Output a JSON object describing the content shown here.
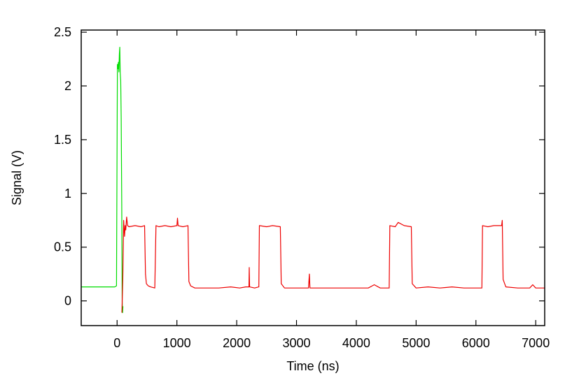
{
  "chart_data": {
    "type": "line",
    "title": "",
    "xlabel": "Time (ns)",
    "ylabel": "Signal (V)",
    "xlim": [
      -600,
      7150
    ],
    "ylim": [
      -0.23,
      2.52
    ],
    "xticks": [
      0,
      1000,
      2000,
      3000,
      4000,
      5000,
      6000,
      7000
    ],
    "xtick_labels": [
      "0",
      "1000",
      "2000",
      "3000",
      "4000",
      "5000",
      "6000",
      "7000"
    ],
    "yticks": [
      0,
      0.5,
      1,
      1.5,
      2,
      2.5
    ],
    "ytick_labels": [
      "0",
      "0.5",
      "1",
      "1.5",
      "2",
      "2.5"
    ],
    "grid": false,
    "legend": "none",
    "series": [
      {
        "color": "#00dd00",
        "points": [
          [
            -600,
            0.13
          ],
          [
            -40,
            0.13
          ],
          [
            -10,
            0.14
          ],
          [
            5,
            2.2
          ],
          [
            15,
            2.16
          ],
          [
            22,
            2.22
          ],
          [
            30,
            2.13
          ],
          [
            38,
            2.3
          ],
          [
            45,
            2.36
          ],
          [
            52,
            2.12
          ],
          [
            60,
            2.05
          ],
          [
            68,
            1.7
          ],
          [
            78,
            0.9
          ],
          [
            85,
            0.0
          ],
          [
            92,
            -0.11
          ],
          [
            98,
            -0.05
          ]
        ]
      },
      {
        "color": "#ee0000",
        "points": [
          [
            80,
            -0.11
          ],
          [
            95,
            0.2
          ],
          [
            110,
            0.75
          ],
          [
            125,
            0.6
          ],
          [
            135,
            0.7
          ],
          [
            145,
            0.66
          ],
          [
            160,
            0.78
          ],
          [
            175,
            0.7
          ],
          [
            200,
            0.69
          ],
          [
            300,
            0.7
          ],
          [
            400,
            0.69
          ],
          [
            460,
            0.7
          ],
          [
            475,
            0.25
          ],
          [
            490,
            0.16
          ],
          [
            520,
            0.14
          ],
          [
            560,
            0.13
          ],
          [
            630,
            0.12
          ],
          [
            650,
            0.7
          ],
          [
            700,
            0.69
          ],
          [
            800,
            0.7
          ],
          [
            900,
            0.69
          ],
          [
            1000,
            0.7
          ],
          [
            1010,
            0.77
          ],
          [
            1020,
            0.7
          ],
          [
            1100,
            0.69
          ],
          [
            1185,
            0.7
          ],
          [
            1200,
            0.18
          ],
          [
            1230,
            0.14
          ],
          [
            1300,
            0.12
          ],
          [
            1500,
            0.12
          ],
          [
            1700,
            0.12
          ],
          [
            1900,
            0.13
          ],
          [
            2050,
            0.12
          ],
          [
            2150,
            0.13
          ],
          [
            2205,
            0.13
          ],
          [
            2210,
            0.31
          ],
          [
            2215,
            0.13
          ],
          [
            2300,
            0.12
          ],
          [
            2370,
            0.13
          ],
          [
            2380,
            0.7
          ],
          [
            2500,
            0.69
          ],
          [
            2600,
            0.7
          ],
          [
            2730,
            0.69
          ],
          [
            2745,
            0.16
          ],
          [
            2800,
            0.12
          ],
          [
            3000,
            0.12
          ],
          [
            3200,
            0.12
          ],
          [
            3215,
            0.25
          ],
          [
            3225,
            0.12
          ],
          [
            3500,
            0.12
          ],
          [
            3800,
            0.12
          ],
          [
            4000,
            0.12
          ],
          [
            4200,
            0.12
          ],
          [
            4300,
            0.15
          ],
          [
            4400,
            0.12
          ],
          [
            4550,
            0.12
          ],
          [
            4560,
            0.7
          ],
          [
            4650,
            0.69
          ],
          [
            4700,
            0.73
          ],
          [
            4800,
            0.7
          ],
          [
            4920,
            0.69
          ],
          [
            4935,
            0.16
          ],
          [
            5000,
            0.12
          ],
          [
            5200,
            0.13
          ],
          [
            5400,
            0.12
          ],
          [
            5600,
            0.13
          ],
          [
            5800,
            0.12
          ],
          [
            6000,
            0.12
          ],
          [
            6100,
            0.12
          ],
          [
            6110,
            0.7
          ],
          [
            6200,
            0.69
          ],
          [
            6300,
            0.7
          ],
          [
            6430,
            0.7
          ],
          [
            6440,
            0.75
          ],
          [
            6455,
            0.2
          ],
          [
            6500,
            0.13
          ],
          [
            6700,
            0.12
          ],
          [
            6900,
            0.12
          ],
          [
            6950,
            0.15
          ],
          [
            7000,
            0.12
          ],
          [
            7150,
            0.12
          ]
        ]
      }
    ]
  }
}
